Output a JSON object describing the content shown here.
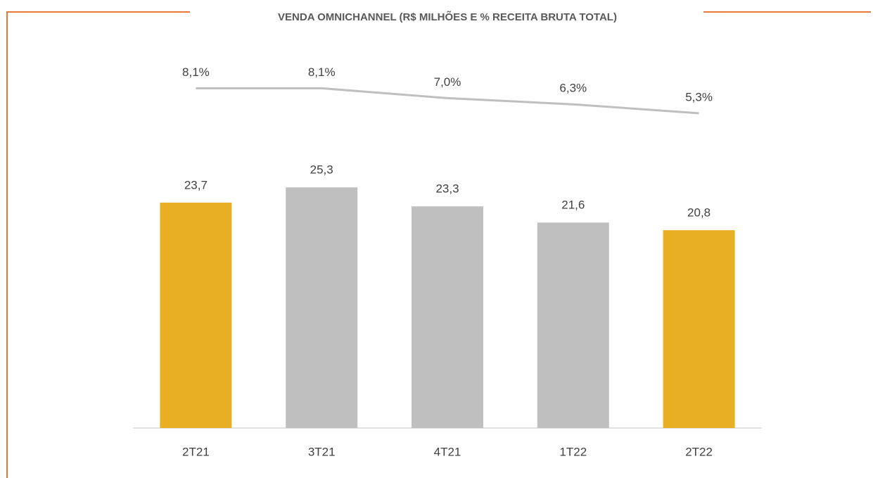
{
  "chart_data": {
    "type": "bar_line",
    "title": "VENDA OMNICHANNEL (R$ MILHÕES E % RECEITA BRUTA TOTAL)",
    "categories": [
      "2T21",
      "3T21",
      "4T21",
      "1T22",
      "2T22"
    ],
    "series": [
      {
        "values": [
          23.7,
          25.3,
          23.3,
          21.6,
          20.8
        ],
        "value_labels": [
          "23,7",
          "25,3",
          "23,3",
          "21,6",
          "20,8"
        ],
        "colors": [
          "#E9AF24",
          "#BFBFBF",
          "#BFBFBF",
          "#BFBFBF",
          "#E9AF24"
        ]
      },
      {
        "values": [
          8.1,
          8.1,
          7.0,
          6.3,
          5.3
        ],
        "value_labels": [
          "8,1%",
          "8,1%",
          "7,0%",
          "6,3%",
          "5,3%"
        ],
        "color": "#BFBFBF",
        "axis": "y2"
      }
    ],
    "ylim": [
      0,
      45
    ],
    "y2lim": [
      -30,
      18
    ]
  }
}
